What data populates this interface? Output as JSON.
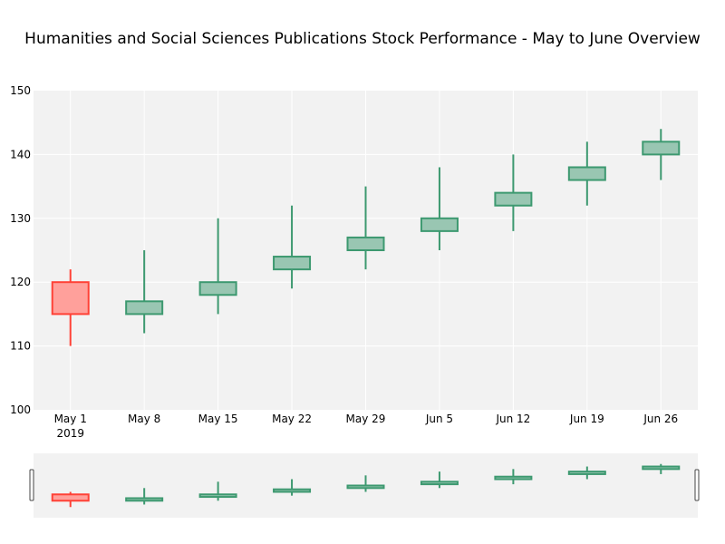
{
  "chart_data": {
    "type": "candlestick",
    "title": "Humanities and Social Sciences Publications Stock Performance - May to June Overview",
    "xlabel": "",
    "ylabel": "",
    "x": [
      "May 1",
      "May 8",
      "May 15",
      "May 22",
      "May 29",
      "Jun 5",
      "Jun 12",
      "Jun 19",
      "Jun 26"
    ],
    "year_label": "2019",
    "open": [
      120,
      115,
      118,
      122,
      125,
      128,
      132,
      136,
      140
    ],
    "high": [
      122,
      125,
      130,
      132,
      135,
      138,
      140,
      142,
      144
    ],
    "low": [
      110,
      112,
      115,
      119,
      122,
      125,
      128,
      132,
      136
    ],
    "close": [
      115,
      117,
      120,
      124,
      127,
      130,
      134,
      138,
      142
    ],
    "ylim": [
      100,
      150
    ],
    "yticks": [
      "100",
      "110",
      "120",
      "130",
      "140",
      "150"
    ],
    "grid": true,
    "range_slider": true,
    "colors": {
      "increasing_line": "#3d9970",
      "increasing_fill": "#99c6b2",
      "decreasing_line": "#ff4136",
      "decreasing_fill": "#ffa09b",
      "plot_bg": "#f2f2f2",
      "grid": "#ffffff",
      "slider_border": "#444444"
    }
  }
}
